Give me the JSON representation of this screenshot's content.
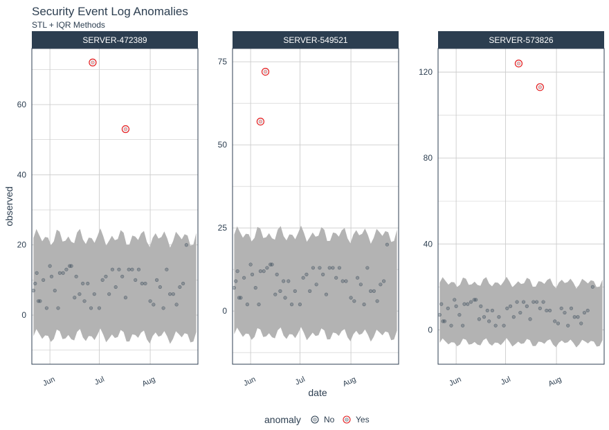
{
  "chart_data": {
    "type": "scatter",
    "title": "Security Event Log Anomalies",
    "subtitle": "STL + IQR Methods",
    "xlabel": "date",
    "ylabel": "observed",
    "xlim": [
      "2024-05-21",
      "2024-08-30"
    ],
    "x_ticks": [
      {
        "date": "2024-06-01",
        "label": "Jun"
      },
      {
        "date": "2024-07-01",
        "label": "Jul"
      },
      {
        "date": "2024-08-01",
        "label": "Aug"
      }
    ],
    "legend": {
      "title": "anomaly",
      "position": "bottom",
      "items": [
        {
          "label": "No",
          "color": "#2c3e50"
        },
        {
          "label": "Yes",
          "color": "#e31a1c"
        }
      ]
    },
    "colors": {
      "strip": "#2c3e50",
      "band": "#b3b3b3",
      "grid": "#cccccc",
      "normal_point": "#2c3e50",
      "anomaly_point": "#e31a1c"
    },
    "grid": true,
    "panels": [
      {
        "name": "SERVER-472389",
        "ylim": [
          -14,
          76
        ],
        "y_ticks": [
          0,
          20,
          40,
          60
        ],
        "band_center": 8,
        "band_half": 14,
        "points": [
          [
            "2024-05-22",
            7
          ],
          [
            "2024-05-23",
            9
          ],
          [
            "2024-05-24",
            12
          ],
          [
            "2024-05-25",
            4
          ],
          [
            "2024-05-26",
            4
          ],
          [
            "2024-05-28",
            10
          ],
          [
            "2024-05-30",
            2
          ],
          [
            "2024-06-01",
            14
          ],
          [
            "2024-06-02",
            11
          ],
          [
            "2024-06-04",
            7
          ],
          [
            "2024-06-06",
            2
          ],
          [
            "2024-06-07",
            12
          ],
          [
            "2024-06-09",
            12
          ],
          [
            "2024-06-11",
            13
          ],
          [
            "2024-06-13",
            14
          ],
          [
            "2024-06-14",
            14
          ],
          [
            "2024-06-16",
            5
          ],
          [
            "2024-06-17",
            11
          ],
          [
            "2024-06-19",
            6
          ],
          [
            "2024-06-21",
            9
          ],
          [
            "2024-06-22",
            4
          ],
          [
            "2024-06-24",
            9
          ],
          [
            "2024-06-26",
            2
          ],
          [
            "2024-06-28",
            6
          ],
          [
            "2024-07-01",
            2
          ],
          [
            "2024-07-03",
            10
          ],
          [
            "2024-07-05",
            11
          ],
          [
            "2024-07-07",
            6
          ],
          [
            "2024-07-09",
            13
          ],
          [
            "2024-07-11",
            8
          ],
          [
            "2024-07-13",
            13
          ],
          [
            "2024-07-15",
            11
          ],
          [
            "2024-07-17",
            5
          ],
          [
            "2024-07-19",
            13
          ],
          [
            "2024-07-21",
            13
          ],
          [
            "2024-07-23",
            10
          ],
          [
            "2024-07-25",
            13
          ],
          [
            "2024-07-27",
            9
          ],
          [
            "2024-07-29",
            9
          ],
          [
            "2024-08-01",
            4
          ],
          [
            "2024-08-03",
            3
          ],
          [
            "2024-08-05",
            10
          ],
          [
            "2024-08-07",
            8
          ],
          [
            "2024-08-09",
            2
          ],
          [
            "2024-08-11",
            13
          ],
          [
            "2024-08-13",
            6
          ],
          [
            "2024-08-15",
            6
          ],
          [
            "2024-08-17",
            3
          ],
          [
            "2024-08-19",
            8
          ],
          [
            "2024-08-21",
            9
          ],
          [
            "2024-08-23",
            20
          ]
        ],
        "anomalies": [
          [
            "2024-06-27",
            72
          ],
          [
            "2024-07-17",
            53
          ]
        ]
      },
      {
        "name": "SERVER-549521",
        "ylim": [
          -16,
          79
        ],
        "y_ticks": [
          0,
          25,
          50,
          75
        ],
        "band_center": 8,
        "band_half": 15,
        "points": [
          [
            "2024-05-22",
            7
          ],
          [
            "2024-05-23",
            9
          ],
          [
            "2024-05-24",
            12
          ],
          [
            "2024-05-25",
            4
          ],
          [
            "2024-05-26",
            4
          ],
          [
            "2024-05-28",
            10
          ],
          [
            "2024-05-30",
            2
          ],
          [
            "2024-06-01",
            14
          ],
          [
            "2024-06-02",
            11
          ],
          [
            "2024-06-04",
            7
          ],
          [
            "2024-06-06",
            2
          ],
          [
            "2024-06-07",
            12
          ],
          [
            "2024-06-09",
            12
          ],
          [
            "2024-06-11",
            13
          ],
          [
            "2024-06-13",
            14
          ],
          [
            "2024-06-14",
            14
          ],
          [
            "2024-06-16",
            5
          ],
          [
            "2024-06-17",
            11
          ],
          [
            "2024-06-19",
            6
          ],
          [
            "2024-06-21",
            9
          ],
          [
            "2024-06-22",
            4
          ],
          [
            "2024-06-24",
            9
          ],
          [
            "2024-06-26",
            2
          ],
          [
            "2024-06-28",
            6
          ],
          [
            "2024-07-01",
            2
          ],
          [
            "2024-07-03",
            10
          ],
          [
            "2024-07-05",
            11
          ],
          [
            "2024-07-07",
            6
          ],
          [
            "2024-07-09",
            13
          ],
          [
            "2024-07-11",
            8
          ],
          [
            "2024-07-13",
            13
          ],
          [
            "2024-07-15",
            11
          ],
          [
            "2024-07-17",
            5
          ],
          [
            "2024-07-19",
            13
          ],
          [
            "2024-07-21",
            13
          ],
          [
            "2024-07-23",
            10
          ],
          [
            "2024-07-25",
            13
          ],
          [
            "2024-07-27",
            9
          ],
          [
            "2024-07-29",
            9
          ],
          [
            "2024-08-01",
            4
          ],
          [
            "2024-08-03",
            3
          ],
          [
            "2024-08-05",
            10
          ],
          [
            "2024-08-07",
            8
          ],
          [
            "2024-08-09",
            2
          ],
          [
            "2024-08-11",
            13
          ],
          [
            "2024-08-13",
            6
          ],
          [
            "2024-08-15",
            6
          ],
          [
            "2024-08-17",
            3
          ],
          [
            "2024-08-19",
            8
          ],
          [
            "2024-08-21",
            9
          ],
          [
            "2024-08-23",
            20
          ]
        ],
        "anomalies": [
          [
            "2024-06-07",
            57
          ],
          [
            "2024-06-10",
            72
          ]
        ]
      },
      {
        "name": "SERVER-573826",
        "ylim": [
          -16,
          131
        ],
        "y_ticks": [
          0,
          40,
          80,
          120
        ],
        "band_center": 8,
        "band_half": 14,
        "points": [
          [
            "2024-05-22",
            7
          ],
          [
            "2024-05-23",
            12
          ],
          [
            "2024-05-24",
            4
          ],
          [
            "2024-05-25",
            4
          ],
          [
            "2024-05-27",
            10
          ],
          [
            "2024-05-29",
            2
          ],
          [
            "2024-05-31",
            14
          ],
          [
            "2024-06-01",
            11
          ],
          [
            "2024-06-03",
            7
          ],
          [
            "2024-06-05",
            2
          ],
          [
            "2024-06-06",
            12
          ],
          [
            "2024-06-08",
            12
          ],
          [
            "2024-06-10",
            13
          ],
          [
            "2024-06-12",
            14
          ],
          [
            "2024-06-13",
            14
          ],
          [
            "2024-06-15",
            5
          ],
          [
            "2024-06-16",
            11
          ],
          [
            "2024-06-18",
            6
          ],
          [
            "2024-06-20",
            9
          ],
          [
            "2024-06-21",
            4
          ],
          [
            "2024-06-23",
            9
          ],
          [
            "2024-06-25",
            2
          ],
          [
            "2024-06-27",
            6
          ],
          [
            "2024-06-30",
            2
          ],
          [
            "2024-07-02",
            10
          ],
          [
            "2024-07-04",
            11
          ],
          [
            "2024-07-06",
            6
          ],
          [
            "2024-07-08",
            13
          ],
          [
            "2024-07-10",
            8
          ],
          [
            "2024-07-12",
            13
          ],
          [
            "2024-07-14",
            11
          ],
          [
            "2024-07-16",
            5
          ],
          [
            "2024-07-18",
            13
          ],
          [
            "2024-07-20",
            13
          ],
          [
            "2024-07-22",
            10
          ],
          [
            "2024-07-24",
            13
          ],
          [
            "2024-07-26",
            9
          ],
          [
            "2024-07-28",
            9
          ],
          [
            "2024-07-31",
            4
          ],
          [
            "2024-08-02",
            3
          ],
          [
            "2024-08-04",
            10
          ],
          [
            "2024-08-06",
            8
          ],
          [
            "2024-08-08",
            2
          ],
          [
            "2024-08-10",
            10
          ],
          [
            "2024-08-12",
            6
          ],
          [
            "2024-08-14",
            6
          ],
          [
            "2024-08-16",
            3
          ],
          [
            "2024-08-18",
            8
          ],
          [
            "2024-08-20",
            9
          ],
          [
            "2024-08-23",
            20
          ]
        ],
        "anomalies": [
          [
            "2024-07-09",
            124
          ],
          [
            "2024-07-22",
            113
          ]
        ]
      }
    ]
  }
}
